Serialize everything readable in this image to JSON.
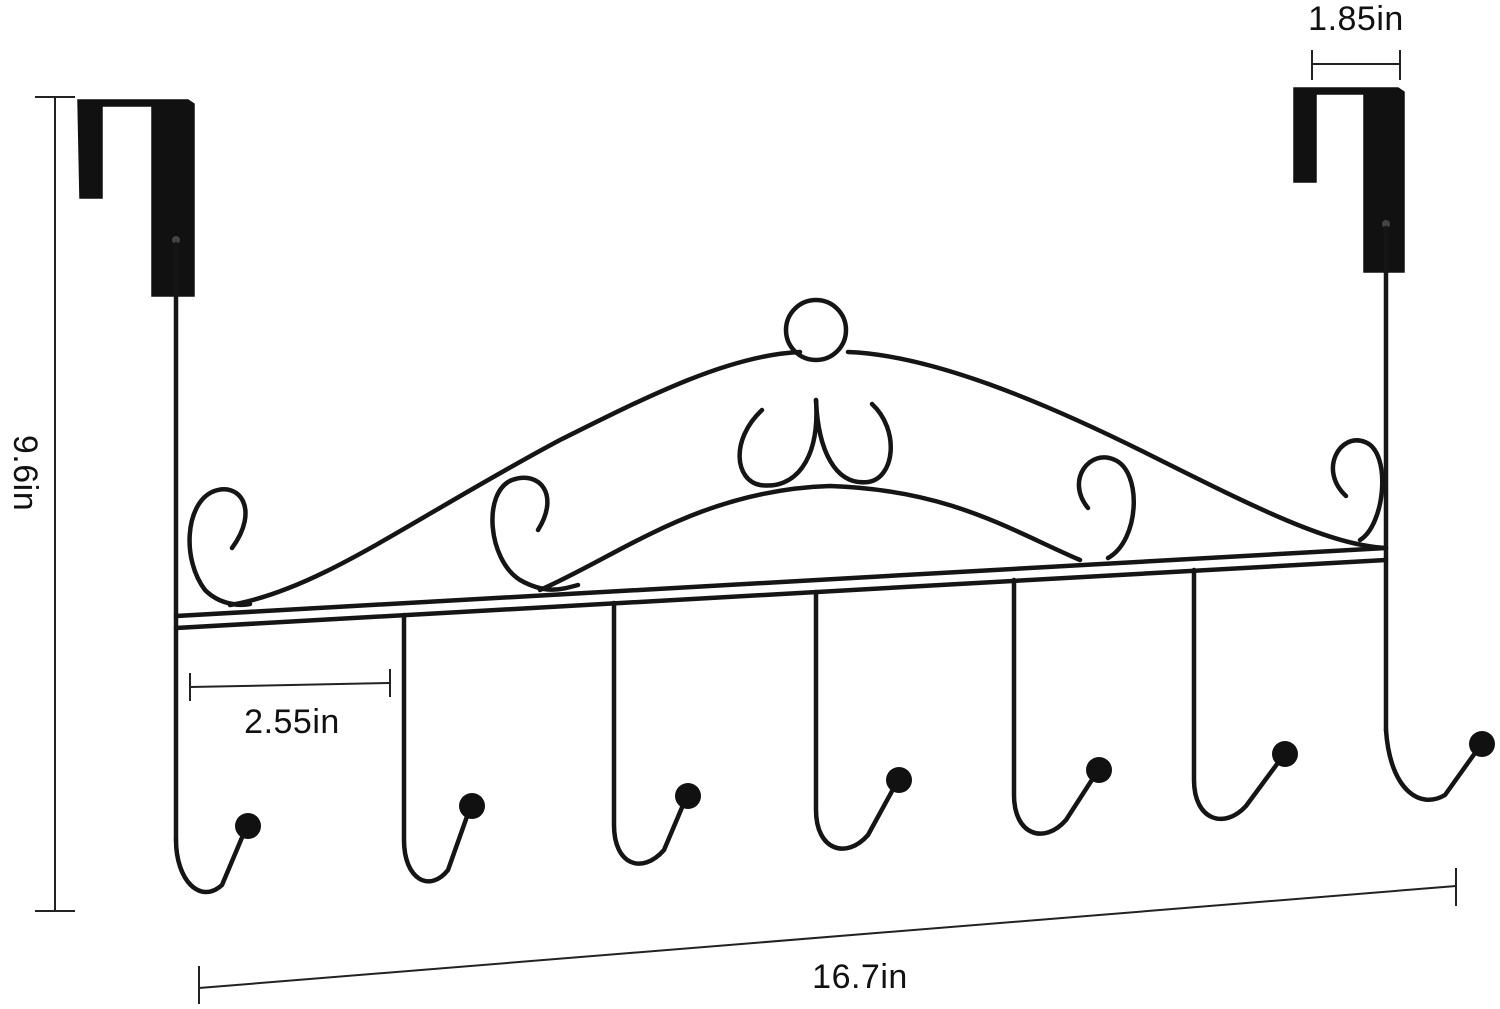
{
  "product": {
    "name": "over-the-door hook rack",
    "hook_count": 7,
    "colors": {
      "metal": "#151515",
      "dimension_lines": "#222222",
      "background": "#ffffff"
    }
  },
  "dimensions": {
    "height": "9.6in",
    "bracket_width": "1.85in",
    "hook_spacing": "2.55in",
    "total_width": "16.7in"
  }
}
